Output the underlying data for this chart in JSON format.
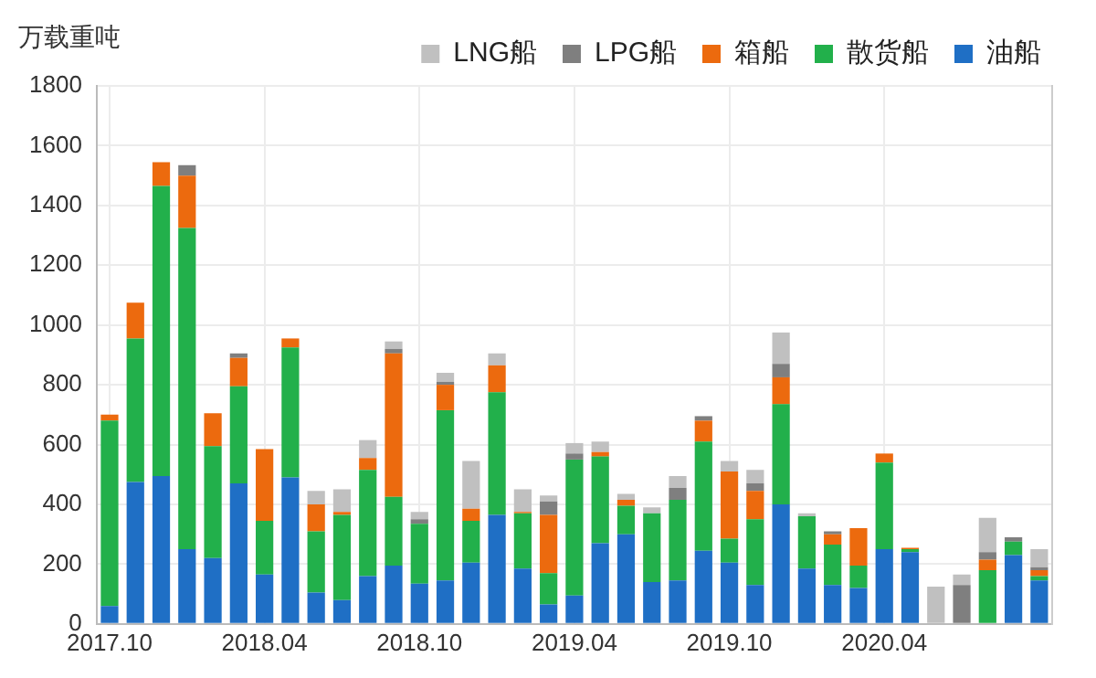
{
  "chart_data": {
    "type": "bar",
    "stacked": true,
    "ylabel": "万载重吨",
    "categories": [
      "2017.10",
      null,
      null,
      null,
      null,
      null,
      "2018.04",
      null,
      null,
      null,
      null,
      null,
      "2018.10",
      null,
      null,
      null,
      null,
      null,
      "2019.04",
      null,
      null,
      null,
      null,
      null,
      "2019.10",
      null,
      null,
      null,
      null,
      null,
      "2020.04",
      null,
      null,
      null,
      null,
      null,
      null
    ],
    "series": [
      {
        "name": "油船",
        "color": "#1f6fc5",
        "values": [
          60,
          475,
          495,
          250,
          220,
          470,
          165,
          490,
          105,
          80,
          160,
          195,
          135,
          145,
          205,
          365,
          185,
          65,
          95,
          270,
          300,
          140,
          145,
          245,
          205,
          130,
          400,
          185,
          130,
          120,
          250,
          240,
          null,
          null,
          null,
          230,
          145
        ]
      },
      {
        "name": "散货船",
        "color": "#22b04b",
        "values": [
          620,
          480,
          970,
          1075,
          375,
          325,
          180,
          435,
          205,
          285,
          355,
          230,
          200,
          570,
          140,
          410,
          185,
          105,
          455,
          290,
          95,
          230,
          270,
          365,
          80,
          220,
          335,
          175,
          135,
          75,
          290,
          10,
          null,
          null,
          180,
          45,
          15
        ]
      },
      {
        "name": "箱船",
        "color": "#ec6a0e",
        "values": [
          20,
          120,
          80,
          175,
          110,
          95,
          240,
          30,
          90,
          10,
          40,
          480,
          null,
          85,
          40,
          90,
          5,
          195,
          null,
          15,
          20,
          null,
          null,
          70,
          225,
          95,
          90,
          null,
          35,
          125,
          30,
          5,
          null,
          null,
          35,
          null,
          20
        ]
      },
      {
        "name": "LPG船",
        "color": "#7f7f7f",
        "values": [
          null,
          null,
          null,
          35,
          null,
          15,
          null,
          null,
          null,
          null,
          null,
          15,
          15,
          10,
          null,
          null,
          null,
          45,
          20,
          null,
          null,
          null,
          40,
          15,
          null,
          25,
          45,
          null,
          10,
          null,
          null,
          null,
          null,
          130,
          25,
          15,
          10
        ]
      },
      {
        "name": "LNG船",
        "color": "#c0c0c0",
        "values": [
          null,
          null,
          null,
          null,
          null,
          null,
          null,
          null,
          45,
          75,
          60,
          25,
          25,
          30,
          160,
          40,
          75,
          20,
          35,
          35,
          20,
          20,
          40,
          null,
          35,
          45,
          105,
          10,
          null,
          null,
          null,
          null,
          125,
          35,
          115,
          null,
          60
        ]
      }
    ],
    "ylim": [
      0,
      1800
    ],
    "yticks": [
      0,
      200,
      400,
      600,
      800,
      1000,
      1200,
      1400,
      1600,
      1800
    ],
    "grid": true,
    "legend": "top"
  }
}
